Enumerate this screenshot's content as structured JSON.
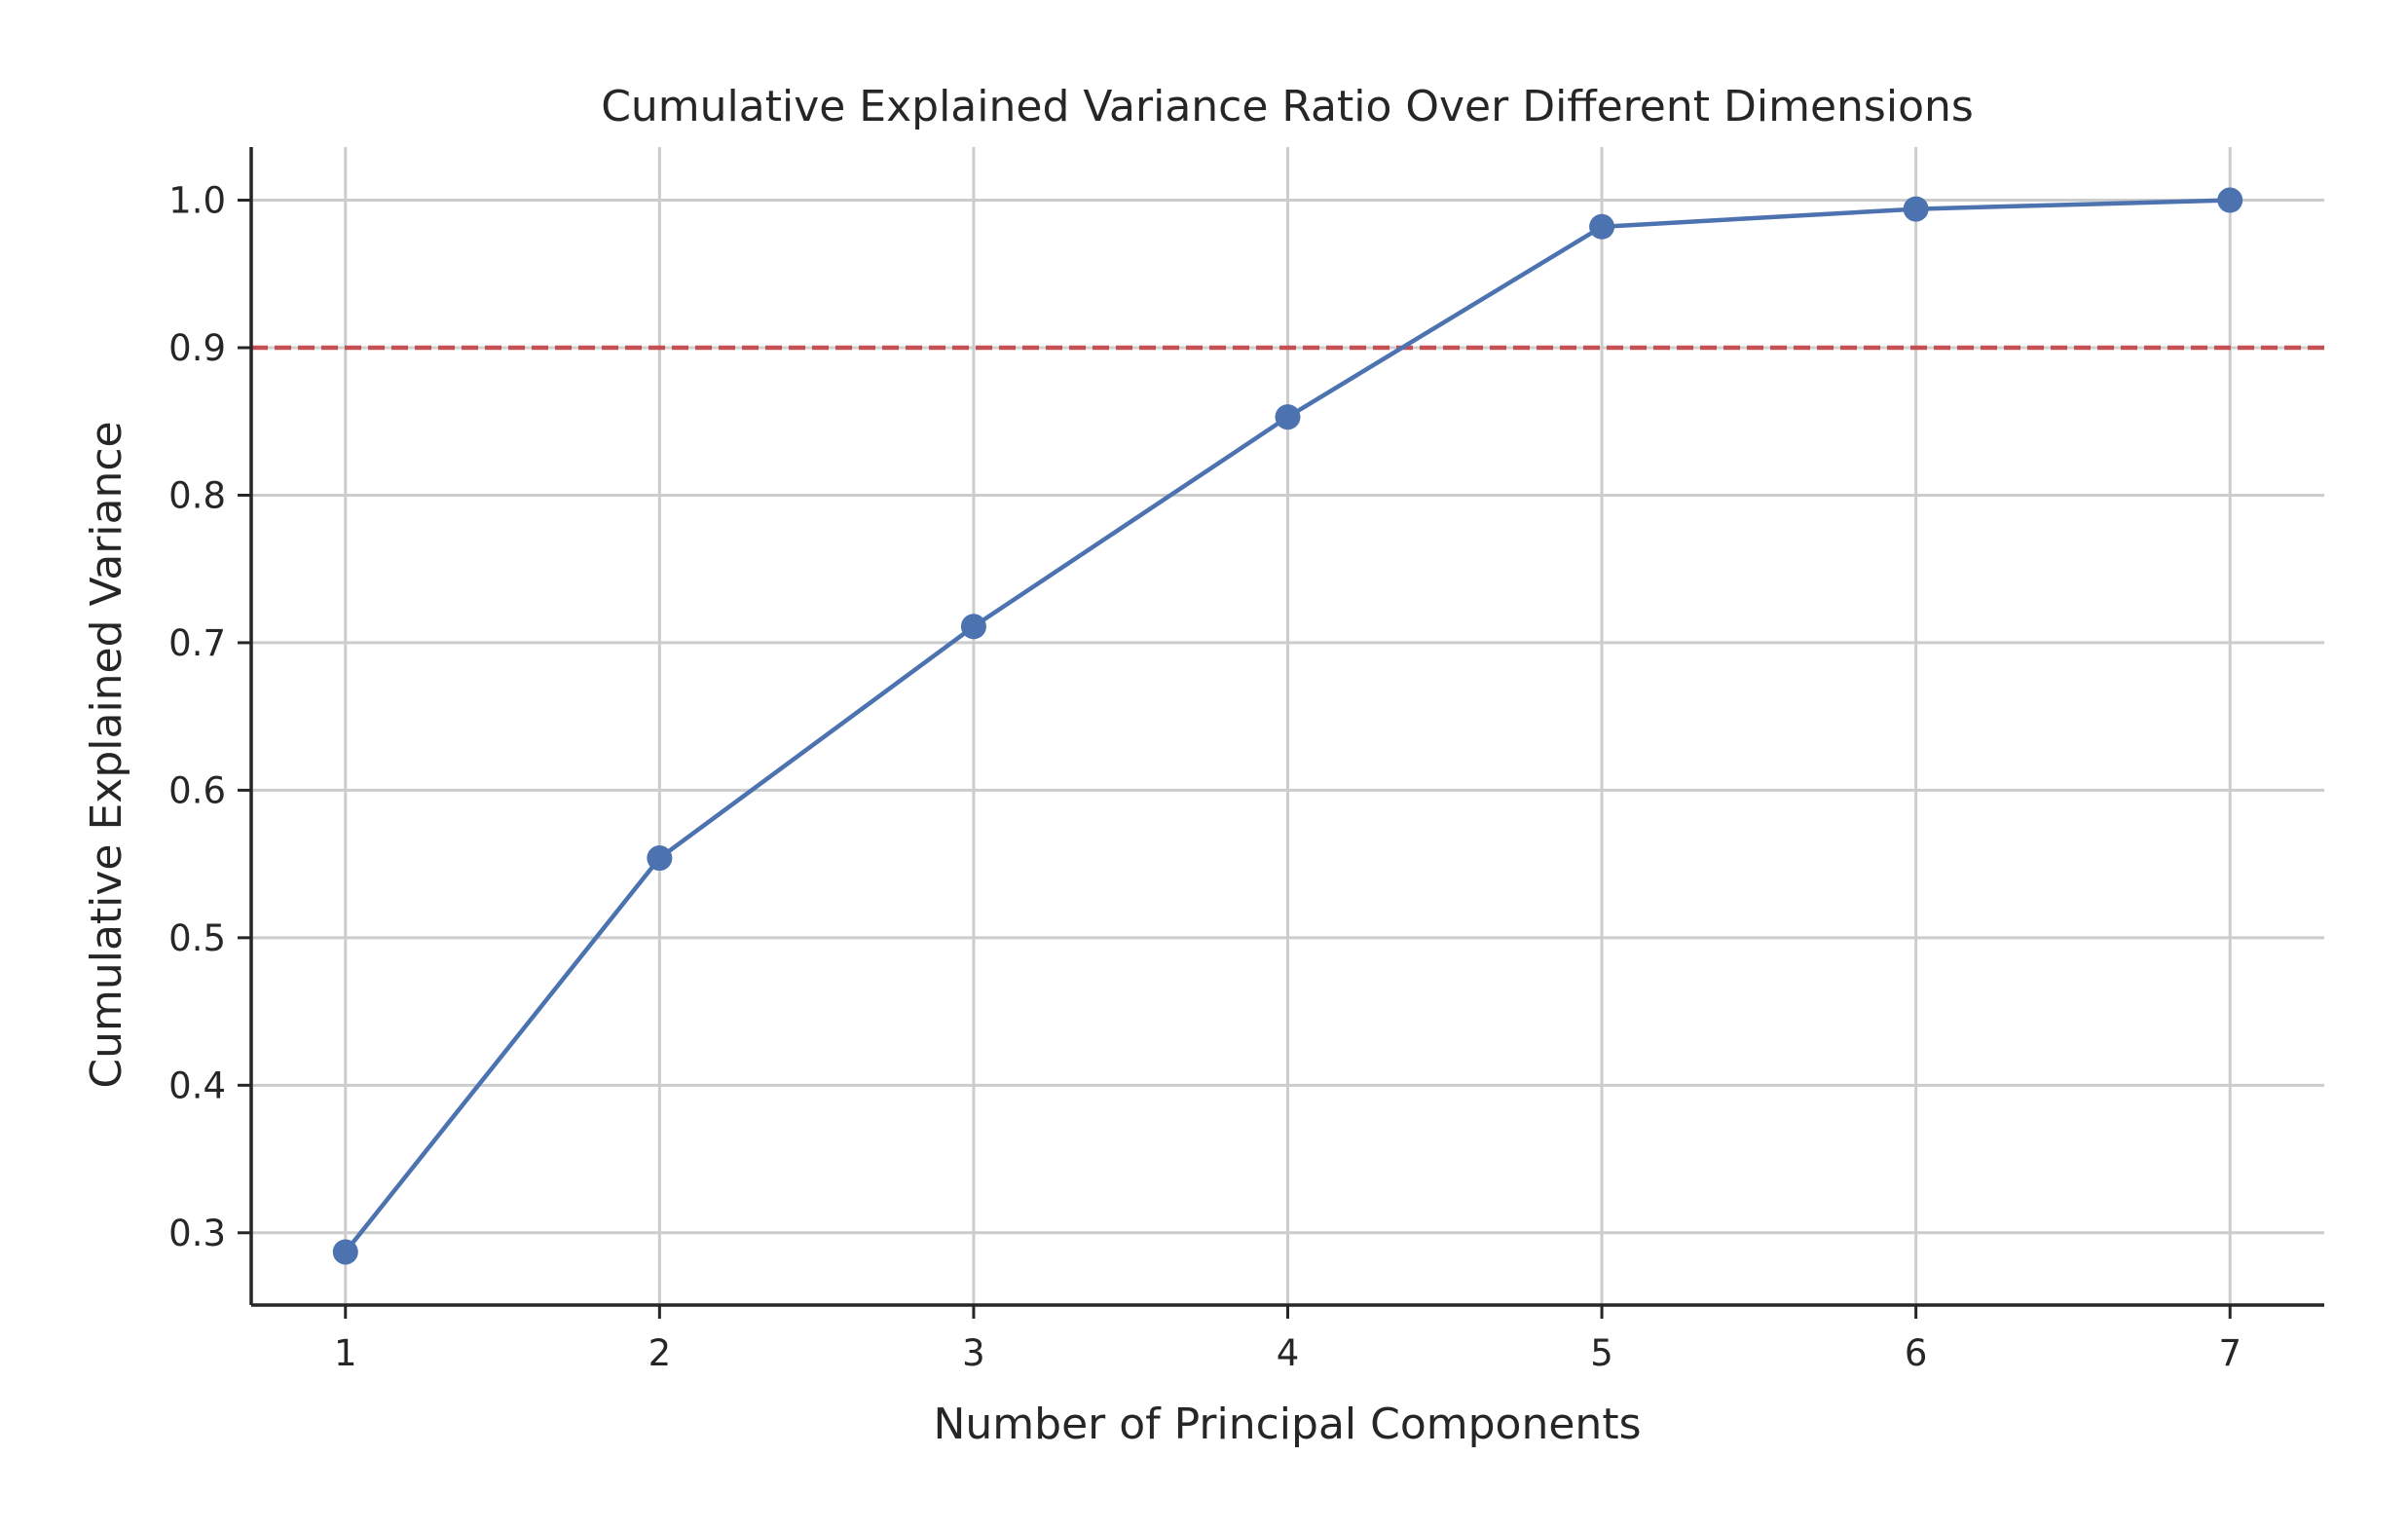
{
  "chart_data": {
    "type": "line",
    "title": "Cumulative Explained Variance Ratio Over Different Dimensions",
    "xlabel": "Number of Principal Components",
    "ylabel": "Cumulative Explained Variance",
    "x": [
      1,
      2,
      3,
      4,
      5,
      6,
      7
    ],
    "series": [
      {
        "values": [
          0.287,
          0.554,
          0.711,
          0.853,
          0.982,
          0.994,
          1.0
        ],
        "color": "#4c72b0",
        "marker": "circle"
      }
    ],
    "threshold": {
      "y": 0.9,
      "color": "#c44e52",
      "style": "dashed"
    },
    "x_ticks": [
      "1",
      "2",
      "3",
      "4",
      "5",
      "6",
      "7"
    ],
    "y_ticks": [
      "0.3",
      "0.4",
      "0.5",
      "0.6",
      "0.7",
      "0.8",
      "0.9",
      "1.0"
    ],
    "xlim": [
      0.7,
      7.3
    ],
    "ylim": [
      0.251,
      1.036
    ],
    "grid": true,
    "legend": "none"
  }
}
